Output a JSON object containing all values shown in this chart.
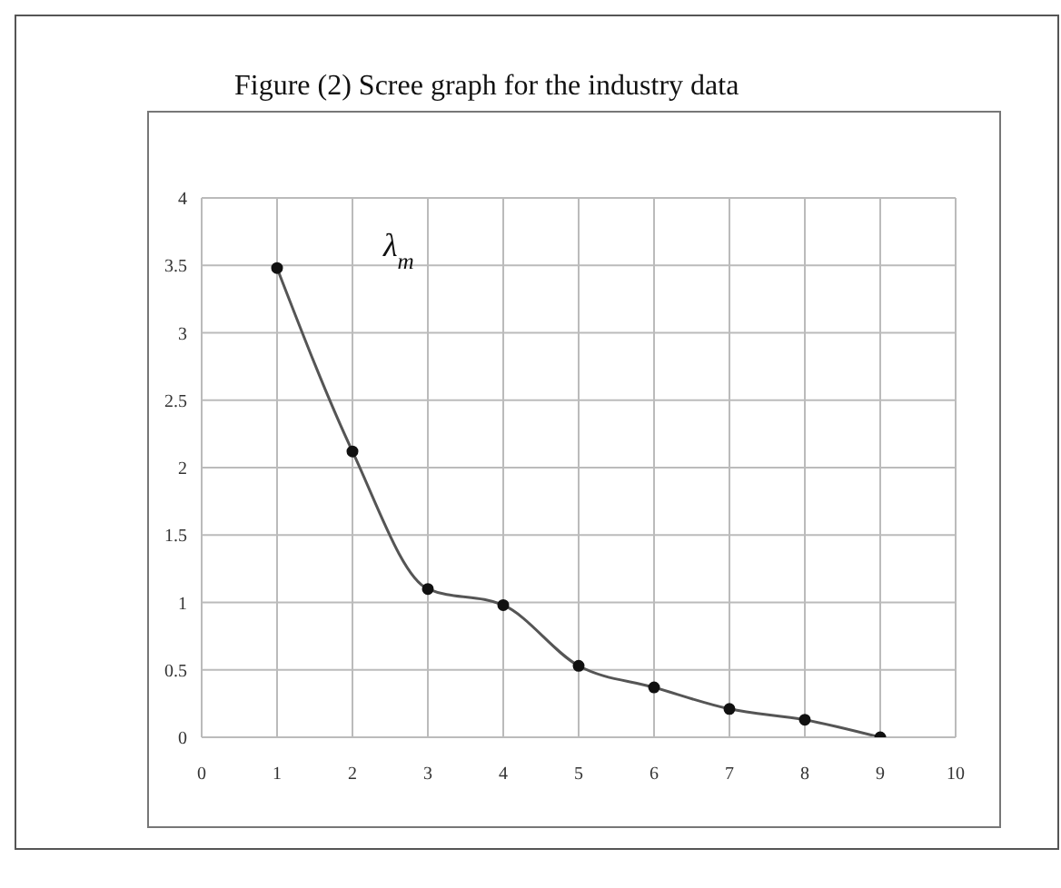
{
  "chart_data": {
    "type": "line",
    "title": "Figure (2)  Scree graph for the industry data",
    "x": [
      1,
      2,
      3,
      4,
      5,
      6,
      7,
      8,
      9
    ],
    "series": [
      {
        "color": "#555555",
        "values": [
          3.48,
          2.12,
          1.1,
          0.98,
          0.53,
          0.37,
          0.21,
          0.13,
          0
        ]
      }
    ],
    "annotations": [
      "λ$_{m}$"
    ],
    "xlim": [
      0,
      10
    ],
    "xticks": [
      0,
      1,
      2,
      3,
      4,
      5,
      6,
      7,
      8,
      9,
      10
    ],
    "ylim": [
      0,
      4
    ],
    "yticks": [
      0,
      0.5,
      1,
      1.5,
      2,
      2.5,
      3,
      3.5,
      4
    ],
    "grid": true,
    "marker": "circle",
    "line_style": "solid",
    "legend": false
  }
}
